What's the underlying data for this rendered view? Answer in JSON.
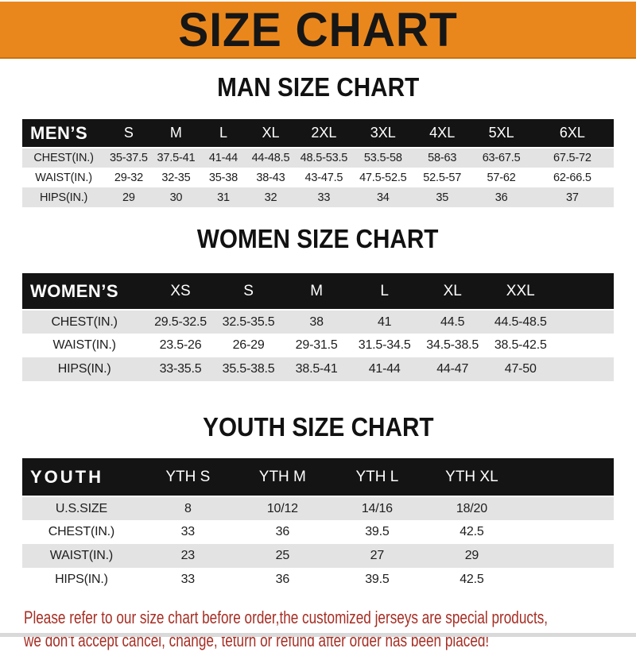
{
  "banner": {
    "title": "SIZE CHART"
  },
  "colors": {
    "accent_orange": "#EA871C",
    "header_bar_black": "#141414",
    "row_gray": "#E3E3E3",
    "footer_red": "#A62E24"
  },
  "sections": [
    {
      "title": "MAN SIZE CHART",
      "header_label": "MEN’S",
      "columns": [
        "S",
        "M",
        "L",
        "XL",
        "2XL",
        "3XL",
        "4XL",
        "5XL",
        "6XL"
      ],
      "rows": [
        {
          "label": "CHEST(IN.)",
          "values": [
            "35-37.5",
            "37.5-41",
            "41-44",
            "44-48.5",
            "48.5-53.5",
            "53.5-58",
            "58-63",
            "63-67.5",
            "67.5-72"
          ]
        },
        {
          "label": "WAIST(IN.)",
          "values": [
            "29-32",
            "32-35",
            "35-38",
            "38-43",
            "43-47.5",
            "47.5-52.5",
            "52.5-57",
            "57-62",
            "62-66.5"
          ]
        },
        {
          "label": "HIPS(IN.)",
          "values": [
            "29",
            "30",
            "31",
            "32",
            "33",
            "34",
            "35",
            "36",
            "37"
          ]
        }
      ]
    },
    {
      "title": "WOMEN SIZE CHART",
      "header_label": "WOMEN’S",
      "columns": [
        "XS",
        "S",
        "M",
        "L",
        "XL",
        "XXL"
      ],
      "rows": [
        {
          "label": "CHEST(IN.)",
          "values": [
            "29.5-32.5",
            "32.5-35.5",
            "38",
            "41",
            "44.5",
            "44.5-48.5"
          ]
        },
        {
          "label": "WAIST(IN.)",
          "values": [
            "23.5-26",
            "26-29",
            "29-31.5",
            "31.5-34.5",
            "34.5-38.5",
            "38.5-42.5"
          ]
        },
        {
          "label": "HIPS(IN.)",
          "values": [
            "33-35.5",
            "35.5-38.5",
            "38.5-41",
            "41-44",
            "44-47",
            "47-50"
          ]
        }
      ]
    },
    {
      "title": "YOUTH SIZE CHART",
      "header_label": "YOUTH",
      "columns": [
        "YTH S",
        "YTH M",
        "YTH L",
        "YTH XL"
      ],
      "rows": [
        {
          "label": "U.S.SIZE",
          "values": [
            "8",
            "10/12",
            "14/16",
            "18/20"
          ]
        },
        {
          "label": "CHEST(IN.)",
          "values": [
            "33",
            "36",
            "39.5",
            "42.5"
          ]
        },
        {
          "label": "WAIST(IN.)",
          "values": [
            "23",
            "25",
            "27",
            "29"
          ]
        },
        {
          "label": "HIPS(IN.)",
          "values": [
            "33",
            "36",
            "39.5",
            "42.5"
          ]
        }
      ]
    }
  ],
  "footer": {
    "line1": "Please refer to our size chart before order,the customized jerseys are special products,",
    "line2": "we don't accept cancel, change, teturn or refund after order has been placed!"
  }
}
